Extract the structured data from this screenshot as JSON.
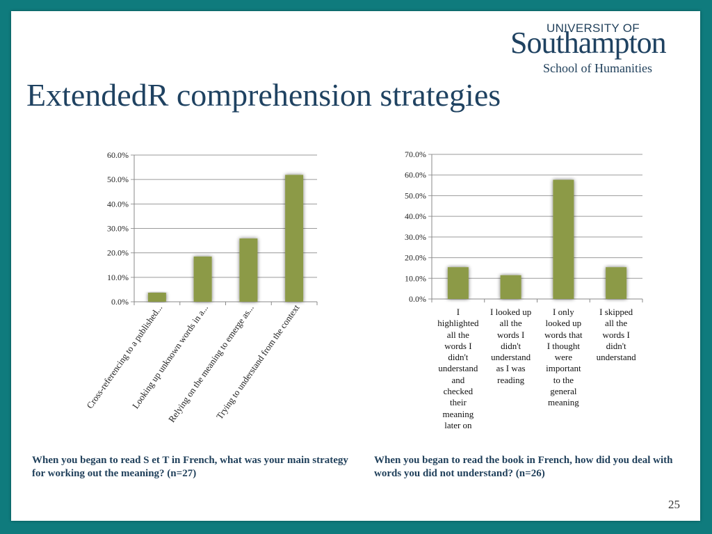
{
  "slide": {
    "title": "ExtendedR comprehension strategies",
    "page_number": "25",
    "logo": {
      "line1": "UNIVERSITY OF",
      "line2": "Southampton",
      "line3": "School of Humanities"
    },
    "caption_left": "When you began to read S et T in French, what was your main strategy for working out the meaning? (n=27)",
    "caption_right": "When you began to read the book in French, how did you deal with words you did not understand? (n=26)"
  },
  "colors": {
    "background": "#0f7b7d",
    "bar": "#8c9a47",
    "title": "#1f4261"
  },
  "chart_data": [
    {
      "type": "bar",
      "categories": [
        "Cross-referencing to a published...",
        "Looking up unknown words in a...",
        "Relying on the meaning to emerge as...",
        "Trying to understand from the context"
      ],
      "values": [
        3.7,
        18.5,
        25.9,
        51.9
      ],
      "y_ticks": [
        "0.0%",
        "10.0%",
        "20.0%",
        "30.0%",
        "40.0%",
        "50.0%",
        "60.0%"
      ],
      "ylim": [
        0,
        60
      ],
      "grid": true,
      "legend": "none"
    },
    {
      "type": "bar",
      "categories": [
        "I highlighted all the words I didn't understand and checked their meaning later on",
        "I looked up all the words I didn't understand as I was reading",
        "I only looked up words that I thought were important to the general meaning",
        "I skipped all the words I didn't understand"
      ],
      "category_lines": [
        [
          "I",
          "highlighted",
          "all the",
          "words I",
          "didn't",
          "understand",
          "and",
          "checked",
          "their",
          "meaning",
          "later on"
        ],
        [
          "I looked up",
          "all the",
          "words I",
          "didn't",
          "understand",
          "as I was",
          "reading"
        ],
        [
          "I only",
          "looked up",
          "words that",
          "I thought",
          "were",
          "important",
          "to the",
          "general",
          "meaning"
        ],
        [
          "I skipped",
          "all the",
          "words I",
          "didn't",
          "understand"
        ]
      ],
      "values": [
        15.4,
        11.5,
        57.7,
        15.4
      ],
      "y_ticks": [
        "0.0%",
        "10.0%",
        "20.0%",
        "30.0%",
        "40.0%",
        "50.0%",
        "60.0%",
        "70.0%"
      ],
      "ylim": [
        0,
        70
      ],
      "grid": true,
      "legend": "none"
    }
  ]
}
